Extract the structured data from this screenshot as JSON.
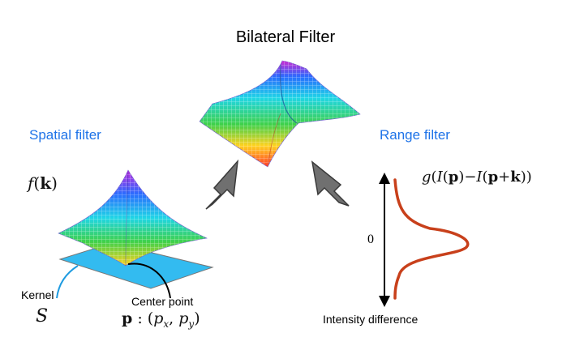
{
  "title": "Bilateral Filter",
  "spatial": {
    "label": "Spatial filter",
    "function": "f(k)",
    "kernel_label": "Kernel",
    "kernel_symbol": "S",
    "center_label": "Center point",
    "center_formula": "p : (px, py)"
  },
  "range": {
    "label": "Range filter",
    "function": "g(I(p)−I(p+k))",
    "zero_label": "0",
    "axis_label": "Intensity difference"
  },
  "colors": {
    "label_blue": "#1e73e8",
    "plane_fill": "#33bbf0",
    "arrow_gray": "#707070",
    "gauss_curve": "#c8401b"
  }
}
